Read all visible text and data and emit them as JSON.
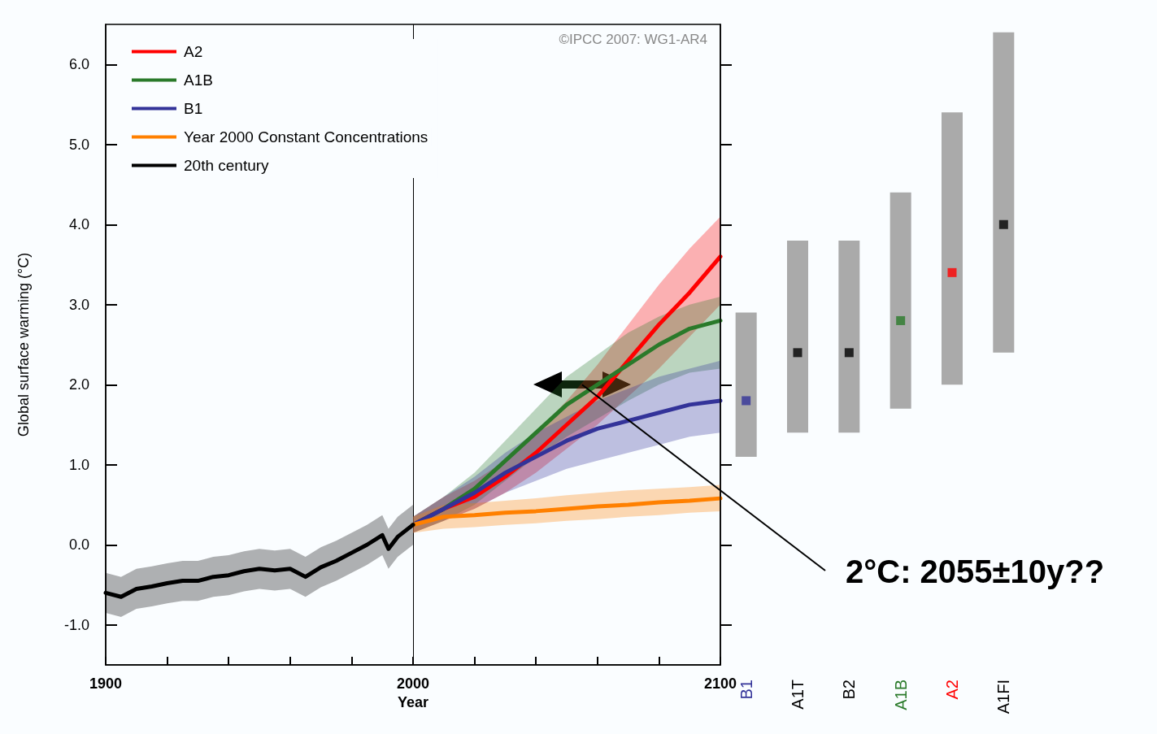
{
  "chart_data": [
    {
      "type": "line",
      "xlabel": "Year",
      "ylabel": "Global surface warming (°C)",
      "xlim": [
        1900,
        2100
      ],
      "ylim": [
        -1.5,
        6.5
      ],
      "xticks": [
        1900,
        {
          "value": 1920,
          "label": null
        },
        {
          "value": 1940,
          "label": null
        },
        {
          "value": 1960,
          "label": null
        },
        {
          "value": 1980,
          "label": null
        },
        2000,
        {
          "value": 2020,
          "label": null
        },
        {
          "value": 2040,
          "label": null
        },
        {
          "value": 2060,
          "label": null
        },
        {
          "value": 2080,
          "label": null
        },
        2100
      ],
      "yticks": [
        {
          "value": -1,
          "label": "-1.0"
        },
        {
          "value": 0,
          "label": "0.0"
        },
        {
          "value": 1,
          "label": "1.0"
        },
        {
          "value": 2,
          "label": "2.0"
        },
        {
          "value": 3,
          "label": "3.0"
        },
        {
          "value": 4,
          "label": "4.0"
        },
        {
          "value": 5,
          "label": "5.0"
        },
        {
          "value": 6,
          "label": "6.0"
        }
      ],
      "grid": false,
      "legend": "top left",
      "marker": "none",
      "line_style": "solid",
      "series": [
        {
          "name": "A2",
          "color": "#ff0000",
          "x": [
            2000,
            2010,
            2020,
            2030,
            2040,
            2050,
            2060,
            2070,
            2080,
            2090,
            2100
          ],
          "values": [
            0.25,
            0.45,
            0.6,
            0.85,
            1.15,
            1.5,
            1.85,
            2.3,
            2.75,
            3.15,
            3.6
          ],
          "lower": [
            0.15,
            0.3,
            0.45,
            0.65,
            0.9,
            1.2,
            1.5,
            1.85,
            2.2,
            2.6,
            3.0
          ],
          "upper": [
            0.35,
            0.6,
            0.8,
            1.05,
            1.4,
            1.8,
            2.25,
            2.75,
            3.25,
            3.7,
            4.1
          ]
        },
        {
          "name": "A1B",
          "color": "#2a7a2a",
          "x": [
            2000,
            2010,
            2020,
            2030,
            2040,
            2050,
            2070,
            2080,
            2090,
            2100
          ],
          "values": [
            0.25,
            0.45,
            0.7,
            1.05,
            1.4,
            1.75,
            2.25,
            2.5,
            2.7,
            2.8
          ],
          "lower": [
            0.15,
            0.3,
            0.5,
            0.8,
            1.1,
            1.35,
            1.8,
            2.0,
            2.15,
            2.2
          ],
          "upper": [
            0.35,
            0.6,
            0.9,
            1.3,
            1.7,
            2.1,
            2.65,
            2.85,
            3.0,
            3.1
          ]
        },
        {
          "name": "B1",
          "color": "#333399",
          "x": [
            2000,
            2010,
            2020,
            2030,
            2040,
            2050,
            2060,
            2070,
            2080,
            2090,
            2100
          ],
          "values": [
            0.25,
            0.45,
            0.65,
            0.9,
            1.1,
            1.3,
            1.45,
            1.55,
            1.65,
            1.75,
            1.8
          ],
          "lower": [
            0.15,
            0.3,
            0.45,
            0.65,
            0.8,
            0.95,
            1.05,
            1.15,
            1.25,
            1.35,
            1.4
          ],
          "upper": [
            0.35,
            0.6,
            0.85,
            1.15,
            1.4,
            1.6,
            1.8,
            1.95,
            2.1,
            2.2,
            2.3
          ]
        },
        {
          "name": "Year 2000 Constant Concentrations",
          "color": "#ff8000",
          "x": [
            2000,
            2010,
            2020,
            2030,
            2040,
            2050,
            2060,
            2070,
            2080,
            2090,
            2100
          ],
          "values": [
            0.25,
            0.35,
            0.37,
            0.4,
            0.42,
            0.45,
            0.48,
            0.5,
            0.53,
            0.55,
            0.58
          ],
          "lower": [
            0.15,
            0.2,
            0.22,
            0.25,
            0.27,
            0.3,
            0.32,
            0.35,
            0.37,
            0.4,
            0.42
          ],
          "upper": [
            0.35,
            0.5,
            0.52,
            0.55,
            0.58,
            0.62,
            0.65,
            0.68,
            0.7,
            0.72,
            0.75
          ]
        },
        {
          "name": "20th century",
          "color": "#000000",
          "x": [
            1900,
            1905,
            1910,
            1915,
            1920,
            1925,
            1930,
            1935,
            1940,
            1945,
            1950,
            1955,
            1960,
            1965,
            1970,
            1975,
            1980,
            1985,
            1990,
            1992,
            1995,
            2000
          ],
          "values": [
            -0.6,
            -0.65,
            -0.55,
            -0.52,
            -0.48,
            -0.45,
            -0.45,
            -0.4,
            -0.38,
            -0.33,
            -0.3,
            -0.32,
            -0.3,
            -0.4,
            -0.28,
            -0.2,
            -0.1,
            0.0,
            0.12,
            -0.05,
            0.1,
            0.25
          ],
          "lower": [
            -0.85,
            -0.9,
            -0.8,
            -0.77,
            -0.73,
            -0.7,
            -0.7,
            -0.65,
            -0.63,
            -0.58,
            -0.55,
            -0.57,
            -0.55,
            -0.65,
            -0.53,
            -0.45,
            -0.35,
            -0.25,
            -0.13,
            -0.3,
            -0.15,
            0.0
          ],
          "upper": [
            -0.35,
            -0.4,
            -0.3,
            -0.27,
            -0.23,
            -0.2,
            -0.2,
            -0.15,
            -0.13,
            -0.08,
            -0.05,
            -0.07,
            -0.05,
            -0.15,
            -0.03,
            0.05,
            0.15,
            0.25,
            0.37,
            0.2,
            0.35,
            0.5
          ]
        }
      ],
      "ref_lines": [
        {
          "axis": "x",
          "value": 2000,
          "color": "#000000",
          "line_style": "solid"
        }
      ],
      "annotations": [
        "©IPCC 2007: WG1-AR4",
        {
          "text": "2°C: 2055±10y??",
          "x": 2055,
          "y": 2
        }
      ]
    },
    {
      "type": "bar",
      "categories": [
        "B1",
        "A1T",
        "B2",
        "A1B",
        "A2",
        "A1FI"
      ],
      "tick_labels": "x",
      "ylim": [
        -1.5,
        6.5
      ],
      "marker": "square",
      "yticks": [
        {
          "value": -1,
          "label": null
        },
        {
          "value": 0,
          "label": null
        },
        {
          "value": 1,
          "label": null
        },
        {
          "value": 2,
          "label": null
        },
        {
          "value": 3,
          "label": null
        },
        {
          "value": 4,
          "label": null
        },
        {
          "value": 5,
          "label": null
        },
        {
          "value": 6,
          "label": null
        }
      ],
      "series": [
        {
          "type": "bar",
          "color": "#aaaaaa",
          "base": [
            1.1,
            1.4,
            1.4,
            1.7,
            2.0,
            2.4
          ],
          "values": [
            1.8,
            2.4,
            2.4,
            2.7,
            3.4,
            4.0
          ]
        },
        {
          "type": "scatter",
          "x": [
            "B1",
            "A1T",
            "B2",
            "A1B",
            "A2",
            "A1FI"
          ],
          "values": [
            1.8,
            2.4,
            2.4,
            2.8,
            3.4,
            4.0
          ],
          "colors": [
            "#333399",
            "#000000",
            "#000000",
            "#2a7a2a",
            "#ff0000",
            "#000000"
          ]
        }
      ]
    }
  ]
}
